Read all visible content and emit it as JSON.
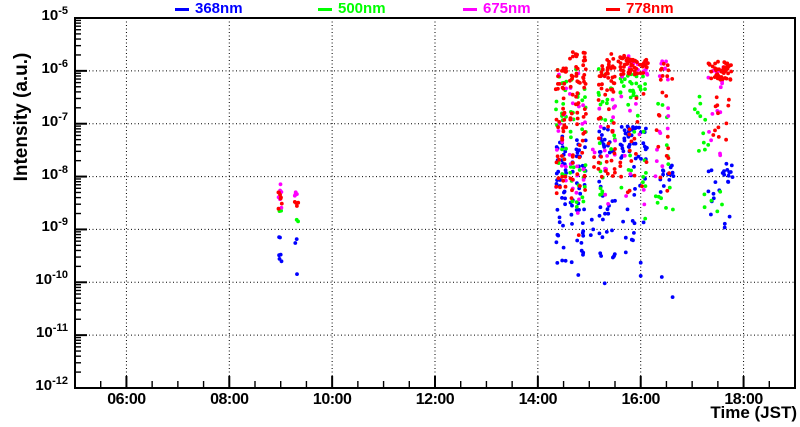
{
  "axes": {
    "x": {
      "title": "Time (JST)",
      "min_hour": 5,
      "max_hour": 19,
      "minor_step_hours": 0.5,
      "majors": [
        {
          "t": 6,
          "label": "06:00"
        },
        {
          "t": 8,
          "label": "08:00"
        },
        {
          "t": 10,
          "label": "10:00"
        },
        {
          "t": 12,
          "label": "12:00"
        },
        {
          "t": 14,
          "label": "14:00"
        },
        {
          "t": 16,
          "label": "16:00"
        },
        {
          "t": 18,
          "label": "18:00"
        }
      ]
    },
    "y": {
      "title": "Intensity (a.u.)",
      "scale": "log",
      "base": 10,
      "exponents": [
        -5,
        -6,
        -7,
        -8,
        -9,
        -10,
        -11,
        -12
      ]
    }
  },
  "chart_data": {
    "type": "scatter",
    "title": "",
    "xlabel": "Time (JST)",
    "ylabel": "Intensity (a.u.)",
    "xlim_jst": [
      "05:00",
      "19:00"
    ],
    "ylim": [
      "1e-12",
      "1e-5"
    ],
    "grid": "dotted",
    "legend_position": "top",
    "series": [
      {
        "name": "368nm",
        "color": "#0000ff"
      },
      {
        "name": "500nm",
        "color": "#00ff00"
      },
      {
        "name": "675nm",
        "color": "#ff00ff"
      },
      {
        "name": "778nm",
        "color": "#ff0000"
      }
    ],
    "clusters": [
      {
        "series": "778nm",
        "t": [
          8.955,
          9.03
        ],
        "logI": [
          -8.62,
          -8.25
        ],
        "n": 7,
        "cols": 1
      },
      {
        "series": "675nm",
        "t": [
          8.955,
          9.03
        ],
        "logI": [
          -8.6,
          -8.12
        ],
        "n": 6,
        "cols": 1
      },
      {
        "series": "500nm",
        "t": [
          8.96,
          9.03
        ],
        "logI": [
          -8.85,
          -8.6
        ],
        "n": 3,
        "cols": 1
      },
      {
        "series": "368nm",
        "t": [
          8.96,
          9.03
        ],
        "logI": [
          -9.75,
          -9.12
        ],
        "n": 6,
        "cols": 1
      },
      {
        "series": "675nm",
        "t": [
          9.27,
          9.34
        ],
        "logI": [
          -8.48,
          -8.28
        ],
        "n": 4,
        "cols": 1
      },
      {
        "series": "778nm",
        "t": [
          9.27,
          9.34
        ],
        "logI": [
          -8.56,
          -8.38
        ],
        "n": 4,
        "cols": 1
      },
      {
        "series": "500nm",
        "t": [
          9.28,
          9.34
        ],
        "logI": [
          -8.86,
          -8.78
        ],
        "n": 2,
        "cols": 1
      },
      {
        "series": "368nm",
        "t": [
          9.28,
          9.34
        ],
        "logI": [
          -9.4,
          -9.1
        ],
        "n": 2,
        "cols": 1
      },
      {
        "series": "368nm",
        "t": [
          9.28,
          9.34
        ],
        "logI": [
          -9.85,
          -9.8
        ],
        "n": 1,
        "cols": 1
      },
      {
        "series": "778nm",
        "t": [
          14.33,
          14.57
        ],
        "logI": [
          -7.1,
          -5.82
        ],
        "n": 26,
        "cols": 2
      },
      {
        "series": "778nm",
        "t": [
          14.33,
          14.57
        ],
        "logI": [
          -8.35,
          -7.1
        ],
        "n": 16,
        "cols": 2
      },
      {
        "series": "500nm",
        "t": [
          14.33,
          14.57
        ],
        "logI": [
          -8.3,
          -5.95
        ],
        "n": 20,
        "cols": 2
      },
      {
        "series": "675nm",
        "t": [
          14.33,
          14.57
        ],
        "logI": [
          -8.55,
          -6.05
        ],
        "n": 13,
        "cols": 2
      },
      {
        "series": "368nm",
        "t": [
          14.33,
          14.57
        ],
        "logI": [
          -8.65,
          -7.15
        ],
        "n": 26,
        "cols": 2
      },
      {
        "series": "368nm",
        "t": [
          14.34,
          14.56
        ],
        "logI": [
          -9.65,
          -8.65
        ],
        "n": 11,
        "cols": 2
      },
      {
        "series": "778nm",
        "t": [
          14.6,
          14.95
        ],
        "logI": [
          -6.6,
          -5.62
        ],
        "n": 34,
        "cols": 3
      },
      {
        "series": "778nm",
        "t": [
          14.6,
          14.95
        ],
        "logI": [
          -8.45,
          -6.6
        ],
        "n": 30,
        "cols": 3
      },
      {
        "series": "500nm",
        "t": [
          14.6,
          14.95
        ],
        "logI": [
          -8.6,
          -5.95
        ],
        "n": 30,
        "cols": 3
      },
      {
        "series": "675nm",
        "t": [
          14.6,
          14.95
        ],
        "logI": [
          -8.8,
          -5.95
        ],
        "n": 20,
        "cols": 3
      },
      {
        "series": "368nm",
        "t": [
          14.62,
          14.95
        ],
        "logI": [
          -8.7,
          -7.3
        ],
        "n": 30,
        "cols": 3
      },
      {
        "series": "368nm",
        "t": [
          14.62,
          14.93
        ],
        "logI": [
          -9.9,
          -8.7
        ],
        "n": 13,
        "cols": 3
      },
      {
        "series": "675nm",
        "t": [
          15.0,
          15.13
        ],
        "logI": [
          -7.65,
          -7.35
        ],
        "n": 2,
        "cols": 1
      },
      {
        "series": "778nm",
        "t": [
          15.02,
          15.12
        ],
        "logI": [
          -7.9,
          -7.55
        ],
        "n": 2,
        "cols": 1
      },
      {
        "series": "368nm",
        "t": [
          15.0,
          15.13
        ],
        "logI": [
          -9.35,
          -8.6
        ],
        "n": 3,
        "cols": 1
      },
      {
        "series": "778nm",
        "t": [
          14.79,
          14.83
        ],
        "logI": [
          -9.12,
          -9.08
        ],
        "n": 1,
        "cols": 1
      },
      {
        "series": "778nm",
        "t": [
          15.16,
          15.52
        ],
        "logI": [
          -6.4,
          -5.68
        ],
        "n": 34,
        "cols": 3
      },
      {
        "series": "778nm",
        "t": [
          15.16,
          15.52
        ],
        "logI": [
          -8.35,
          -6.4
        ],
        "n": 24,
        "cols": 3
      },
      {
        "series": "500nm",
        "t": [
          15.16,
          15.52
        ],
        "logI": [
          -8.55,
          -5.95
        ],
        "n": 25,
        "cols": 3
      },
      {
        "series": "675nm",
        "t": [
          15.16,
          15.52
        ],
        "logI": [
          -8.75,
          -5.95
        ],
        "n": 16,
        "cols": 3
      },
      {
        "series": "368nm",
        "t": [
          15.17,
          15.5
        ],
        "logI": [
          -7.65,
          -7.05
        ],
        "n": 18,
        "cols": 2
      },
      {
        "series": "368nm",
        "t": [
          15.17,
          15.52
        ],
        "logI": [
          -9.55,
          -7.65
        ],
        "n": 22,
        "cols": 3
      },
      {
        "series": "778nm",
        "t": [
          15.55,
          16.14
        ],
        "logI": [
          -6.08,
          -5.7
        ],
        "n": 55,
        "cols": 0
      },
      {
        "series": "778nm",
        "t": [
          15.55,
          16.14
        ],
        "logI": [
          -8.3,
          -6.1
        ],
        "n": 18,
        "cols": 4
      },
      {
        "series": "500nm",
        "t": [
          15.58,
          16.1
        ],
        "logI": [
          -6.52,
          -6.05
        ],
        "n": 28,
        "cols": 0
      },
      {
        "series": "500nm",
        "t": [
          15.58,
          16.12
        ],
        "logI": [
          -8.85,
          -6.55
        ],
        "n": 14,
        "cols": 4
      },
      {
        "series": "675nm",
        "t": [
          15.55,
          16.14
        ],
        "logI": [
          -6.12,
          -5.72
        ],
        "n": 14,
        "cols": 0
      },
      {
        "series": "675nm",
        "t": [
          15.6,
          16.1
        ],
        "logI": [
          -8.6,
          -6.2
        ],
        "n": 9,
        "cols": 3
      },
      {
        "series": "368nm",
        "t": [
          15.57,
          16.12
        ],
        "logI": [
          -7.68,
          -7.05
        ],
        "n": 40,
        "cols": 0
      },
      {
        "series": "368nm",
        "t": [
          15.6,
          16.12
        ],
        "logI": [
          -9.65,
          -7.7
        ],
        "n": 16,
        "cols": 3
      },
      {
        "series": "675nm",
        "t": [
          16.37,
          16.6
        ],
        "logI": [
          -6.18,
          -5.8
        ],
        "n": 8,
        "cols": 1
      },
      {
        "series": "778nm",
        "t": [
          16.37,
          16.62
        ],
        "logI": [
          -6.25,
          -5.82
        ],
        "n": 9,
        "cols": 1
      },
      {
        "series": "778nm",
        "t": [
          16.25,
          16.66
        ],
        "logI": [
          -8.4,
          -6.3
        ],
        "n": 13,
        "cols": 2
      },
      {
        "series": "675nm",
        "t": [
          16.25,
          16.66
        ],
        "logI": [
          -8.6,
          -6.35
        ],
        "n": 9,
        "cols": 2
      },
      {
        "series": "500nm",
        "t": [
          16.25,
          16.66
        ],
        "logI": [
          -8.7,
          -6.35
        ],
        "n": 13,
        "cols": 2
      },
      {
        "series": "368nm",
        "t": [
          16.35,
          16.66
        ],
        "logI": [
          -8.35,
          -7.78
        ],
        "n": 13,
        "cols": 2
      },
      {
        "series": "778nm",
        "t": [
          17.3,
          17.79
        ],
        "logI": [
          -6.18,
          -5.8
        ],
        "n": 48,
        "cols": 0
      },
      {
        "series": "778nm",
        "t": [
          17.35,
          17.76
        ],
        "logI": [
          -7.35,
          -6.2
        ],
        "n": 12,
        "cols": 2
      },
      {
        "series": "675nm",
        "t": [
          17.3,
          17.78
        ],
        "logI": [
          -6.35,
          -5.85
        ],
        "n": 9,
        "cols": 0
      },
      {
        "series": "675nm",
        "t": [
          17.2,
          17.7
        ],
        "logI": [
          -7.7,
          -6.4
        ],
        "n": 7,
        "cols": 2
      },
      {
        "series": "500nm",
        "t": [
          17.02,
          17.35
        ],
        "logI": [
          -7.55,
          -6.45
        ],
        "n": 11,
        "cols": 2
      },
      {
        "series": "500nm",
        "t": [
          17.1,
          17.75
        ],
        "logI": [
          -8.95,
          -8.1
        ],
        "n": 6,
        "cols": 2
      },
      {
        "series": "368nm",
        "t": [
          17.3,
          17.79
        ],
        "logI": [
          -8.35,
          -7.75
        ],
        "n": 18,
        "cols": 0
      },
      {
        "series": "368nm",
        "t": [
          17.2,
          17.78
        ],
        "logI": [
          -9.05,
          -8.4
        ],
        "n": 6,
        "cols": 2
      }
    ],
    "singles": [
      {
        "series": "368nm",
        "t": 15.3,
        "logI": -10.02
      },
      {
        "series": "368nm",
        "t": 16.0,
        "logI": -9.63
      },
      {
        "series": "368nm",
        "t": 16.0,
        "logI": -9.88
      },
      {
        "series": "368nm",
        "t": 16.41,
        "logI": -9.9
      },
      {
        "series": "368nm",
        "t": 16.62,
        "logI": -10.28
      }
    ]
  }
}
